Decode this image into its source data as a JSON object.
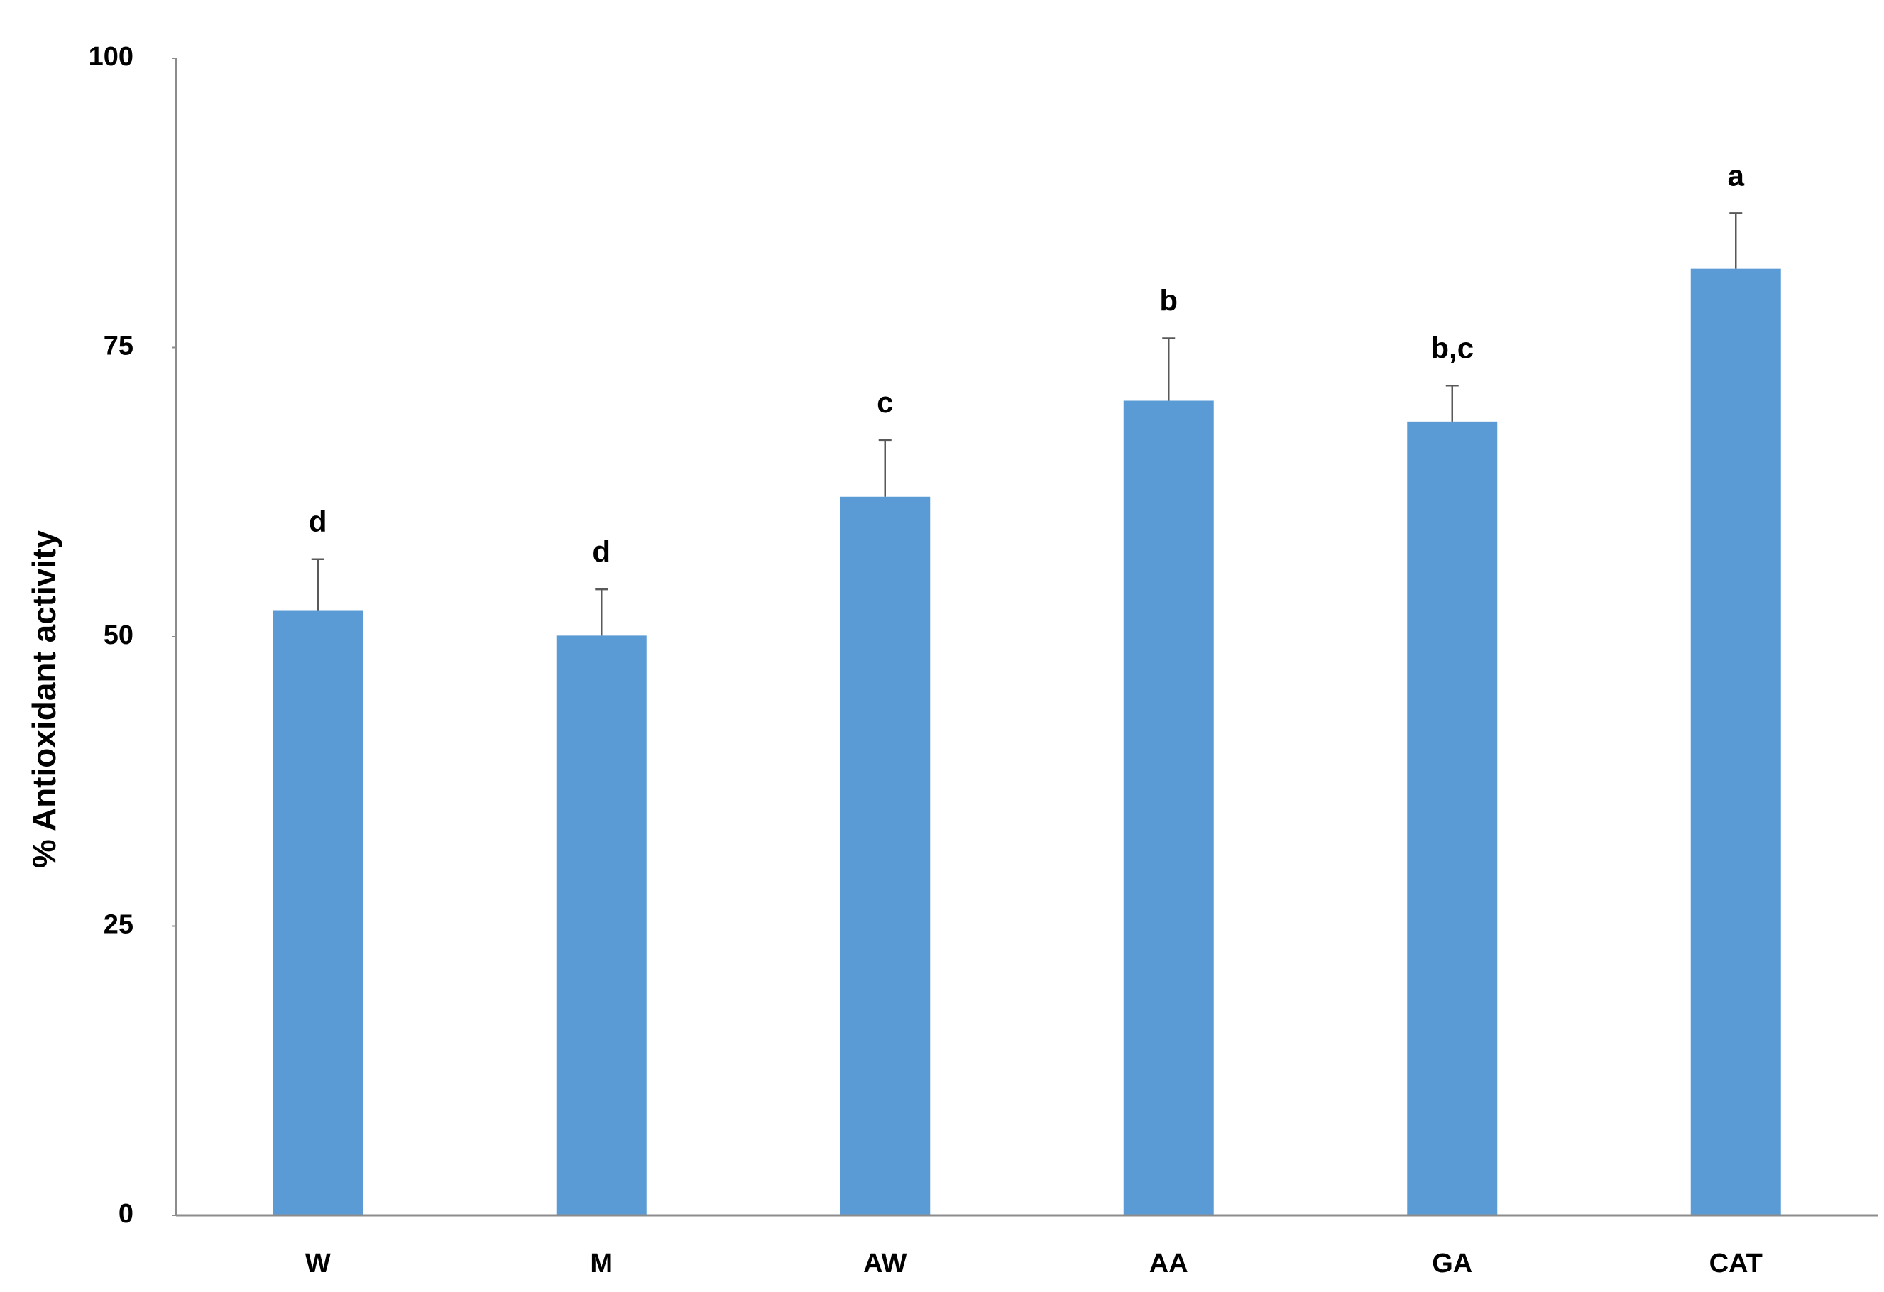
{
  "chart_data": {
    "type": "bar",
    "y_label": "% Antioxidant activity",
    "categories": [
      "W",
      "M",
      "AW",
      "AA",
      "GA",
      "CAT"
    ],
    "values": [
      52.3,
      50.1,
      62.1,
      70.4,
      68.6,
      81.8
    ],
    "errors": [
      4.4,
      4.0,
      4.9,
      5.4,
      3.1,
      4.8
    ],
    "significance_labels": [
      "d",
      "d",
      "c",
      "b",
      "b,c",
      "a"
    ],
    "color": "#5b9bd5",
    "ylim": [
      0,
      100
    ],
    "yticks": [
      0,
      25,
      50,
      75,
      100
    ],
    "grid": false
  }
}
